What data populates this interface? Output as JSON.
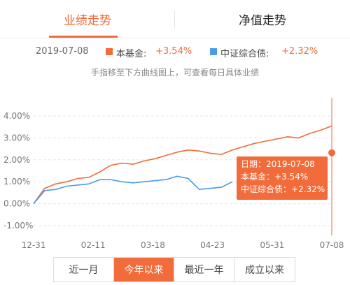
{
  "tabs": [
    {
      "label": "业绩走势",
      "active": true
    },
    {
      "label": "净值走势",
      "active": false
    }
  ],
  "legend": {
    "date": "2019-07-08",
    "fund_label": "本基金:",
    "fund_value": "+3.54%",
    "index_label": "中证综合债:",
    "index_value": "+2.32%"
  },
  "hint": "手指移至下方曲线图上，可查看每日具体业绩",
  "tooltip": {
    "date_line": "日期：2019-07-08",
    "fund_line": "本基金：+3.54%",
    "index_line": "中证综合债：+2.32%"
  },
  "periods": [
    {
      "label": "近一月",
      "active": false
    },
    {
      "label": "今年以来",
      "active": true
    },
    {
      "label": "最近一年",
      "active": false
    },
    {
      "label": "成立以来",
      "active": false
    }
  ],
  "colors": {
    "fund": "#f26b3a",
    "index": "#4c9be8",
    "accent": "#f26b3a"
  },
  "chart_data": {
    "type": "line",
    "x_ticks": [
      "12-31",
      "02-11",
      "03-18",
      "04-23",
      "05-31",
      "07-08"
    ],
    "y_ticks": [
      "4.00%",
      "3.00%",
      "2.00%",
      "1.00%",
      "0.00%",
      "-1.00%"
    ],
    "ylim": [
      -1.0,
      4.0
    ],
    "grid": true,
    "series": [
      {
        "name": "本基金",
        "x": [
          "2018-12-31",
          "2019-01-07",
          "2019-01-14",
          "2019-01-21",
          "2019-01-28",
          "2019-02-04",
          "2019-02-11",
          "2019-02-18",
          "2019-02-25",
          "2019-03-04",
          "2019-03-11",
          "2019-03-18",
          "2019-03-25",
          "2019-04-01",
          "2019-04-08",
          "2019-04-15",
          "2019-04-22",
          "2019-04-29",
          "2019-05-06",
          "2019-05-13",
          "2019-05-20",
          "2019-05-27",
          "2019-06-03",
          "2019-06-10",
          "2019-06-17",
          "2019-06-24",
          "2019-07-01",
          "2019-07-08"
        ],
        "values": [
          0.0,
          0.7,
          0.9,
          1.0,
          1.15,
          1.2,
          1.45,
          1.75,
          1.85,
          1.8,
          1.95,
          2.05,
          2.2,
          2.35,
          2.45,
          2.4,
          2.3,
          2.25,
          2.45,
          2.6,
          2.75,
          2.85,
          2.95,
          3.05,
          3.0,
          3.2,
          3.35,
          3.54
        ]
      },
      {
        "name": "中证综合债",
        "x": [
          "2018-12-31",
          "2019-01-07",
          "2019-01-14",
          "2019-01-21",
          "2019-01-28",
          "2019-02-04",
          "2019-02-11",
          "2019-02-18",
          "2019-02-25",
          "2019-03-04",
          "2019-03-11",
          "2019-03-18",
          "2019-03-25",
          "2019-04-01",
          "2019-04-08",
          "2019-04-15",
          "2019-04-22",
          "2019-04-29",
          "2019-05-06"
        ],
        "values": [
          0.0,
          0.6,
          0.65,
          0.8,
          0.85,
          0.9,
          1.1,
          1.1,
          1.0,
          0.95,
          1.0,
          1.05,
          1.1,
          1.25,
          1.15,
          0.65,
          0.7,
          0.75,
          1.0
        ]
      }
    ]
  }
}
